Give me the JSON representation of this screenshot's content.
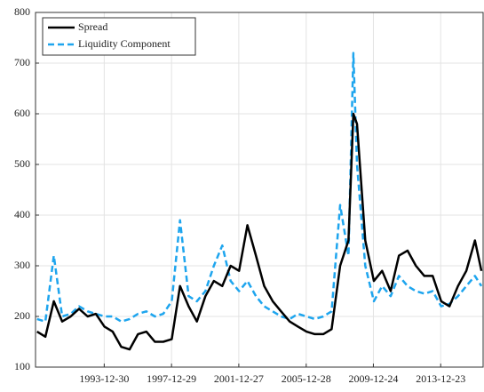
{
  "chart_data": {
    "type": "line",
    "x": [
      "1990-01-02",
      "1990-07-02",
      "1991-01-02",
      "1991-07-02",
      "1992-01-02",
      "1992-07-01",
      "1993-01-04",
      "1993-07-01",
      "1994-01-03",
      "1994-07-01",
      "1995-01-03",
      "1995-07-03",
      "1996-01-02",
      "1996-07-01",
      "1997-01-02",
      "1997-07-01",
      "1998-01-02",
      "1998-07-01",
      "1999-01-04",
      "1999-07-01",
      "2000-01-03",
      "2000-07-03",
      "2001-01-02",
      "2001-07-02",
      "2002-01-02",
      "2002-07-01",
      "2003-01-02",
      "2003-07-01",
      "2004-01-02",
      "2004-07-01",
      "2005-01-03",
      "2005-07-01",
      "2006-01-03",
      "2006-07-03",
      "2007-01-02",
      "2007-07-02",
      "2008-01-02",
      "2008-07-01",
      "2008-10-15",
      "2009-01-02",
      "2009-07-01",
      "2010-01-04",
      "2010-07-01",
      "2011-01-03",
      "2011-07-01",
      "2012-01-03",
      "2012-07-02",
      "2013-01-02",
      "2013-07-01",
      "2014-01-02",
      "2014-07-01",
      "2015-01-02",
      "2015-07-01",
      "2016-01-04",
      "2016-05-25"
    ],
    "series": [
      {
        "name": "Spread",
        "color": "#000000",
        "dash": "solid",
        "values": [
          170,
          160,
          230,
          190,
          200,
          215,
          200,
          205,
          180,
          170,
          140,
          135,
          165,
          170,
          150,
          150,
          155,
          260,
          220,
          190,
          240,
          270,
          260,
          300,
          290,
          380,
          320,
          260,
          230,
          210,
          190,
          180,
          170,
          165,
          165,
          175,
          300,
          350,
          600,
          580,
          350,
          270,
          290,
          250,
          320,
          330,
          300,
          280,
          280,
          230,
          220,
          260,
          290,
          350,
          290
        ]
      },
      {
        "name": "Liquidity Component",
        "color": "#1ea5ee",
        "dash": "dashed",
        "values": [
          195,
          190,
          320,
          200,
          205,
          220,
          210,
          205,
          200,
          200,
          190,
          195,
          205,
          210,
          200,
          205,
          230,
          390,
          240,
          230,
          250,
          300,
          340,
          270,
          250,
          270,
          240,
          220,
          210,
          200,
          195,
          205,
          200,
          195,
          200,
          210,
          420,
          320,
          720,
          500,
          300,
          230,
          260,
          240,
          280,
          260,
          250,
          245,
          250,
          220,
          225,
          240,
          260,
          280,
          260
        ]
      }
    ],
    "xlim": [
      "1989-12-01",
      "2016-06-30"
    ],
    "xticks": [
      "1993-12-30",
      "1997-12-29",
      "2001-12-27",
      "2005-12-28",
      "2009-12-24",
      "2013-12-23"
    ],
    "ylim": [
      100,
      800
    ],
    "yticks": [
      100,
      200,
      300,
      400,
      500,
      600,
      700,
      800
    ],
    "grid": true,
    "legend": "northwest"
  }
}
